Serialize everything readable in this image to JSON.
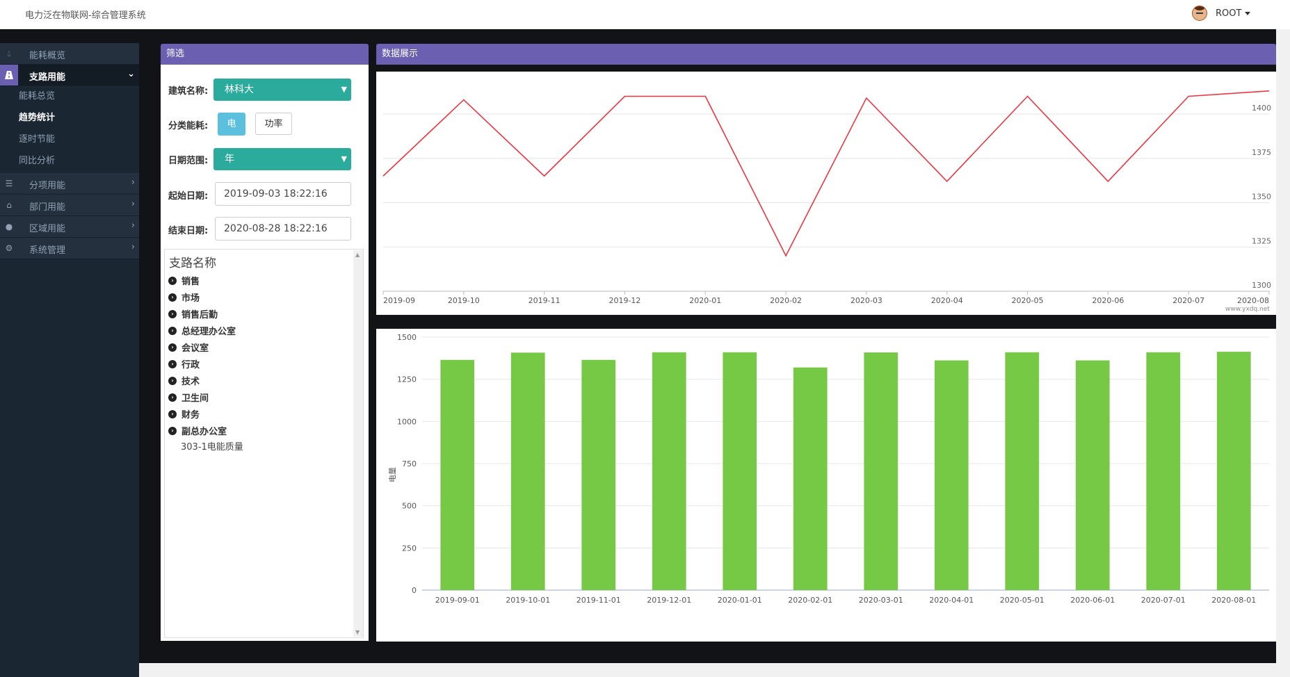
{
  "app": {
    "title": "电力泛在物联网-综合管理系统",
    "user": "ROOT"
  },
  "sidebar": {
    "items": [
      {
        "label": "能耗概览",
        "icon": "drop-icon"
      },
      {
        "label": "支路用能",
        "icon": "road-icon",
        "active": true
      },
      {
        "label": "分项用能",
        "icon": "list-icon"
      },
      {
        "label": "部门用能",
        "icon": "home-icon"
      },
      {
        "label": "区域用能",
        "icon": "map-marker-icon"
      },
      {
        "label": "系统管理",
        "icon": "gear-icon"
      }
    ],
    "sub_items": [
      {
        "label": "能耗总览"
      },
      {
        "label": "趋势统计",
        "current": true
      },
      {
        "label": "逐时节能"
      },
      {
        "label": "同比分析"
      }
    ]
  },
  "filter": {
    "header": "筛选",
    "building_label": "建筑名称:",
    "building_value": "林科大",
    "category_label": "分类能耗:",
    "category_options": [
      "电",
      "功率"
    ],
    "range_label": "日期范围:",
    "range_value": "年",
    "start_label": "起始日期:",
    "start_value": "2019-09-03 18:22:16",
    "end_label": "结束日期:",
    "end_value": "2020-08-28 18:22:16",
    "tree_title": "支路名称",
    "tree_nodes": [
      "销售",
      "市场",
      "销售后勤",
      "总经理办公室",
      "会议室",
      "行政",
      "技术",
      "卫生间",
      "财务",
      "副总办公室"
    ],
    "tree_leaf": "303-1电能质量"
  },
  "display": {
    "header": "数据展示",
    "watermark": "www.yxdq.net"
  },
  "colors": {
    "accent": "#6a5fb0",
    "teal": "#2bab9c",
    "info": "#5bc0de",
    "line": "#f0343f",
    "bar": "#76c944"
  },
  "chart_data": [
    {
      "type": "line",
      "x": [
        "2019-09",
        "2019-10",
        "2019-11",
        "2019-12",
        "2020-01",
        "2020-02",
        "2020-03",
        "2020-04",
        "2020-05",
        "2020-06",
        "2020-07",
        "2020-08"
      ],
      "values": [
        1365,
        1408,
        1365,
        1410,
        1410,
        1320,
        1409,
        1362,
        1410,
        1362,
        1410,
        1413
      ],
      "yticks": [
        1300,
        1325,
        1350,
        1375,
        1400
      ],
      "ylim": [
        1300,
        1420
      ],
      "y_axis_side": "right",
      "grid": true
    },
    {
      "type": "bar",
      "categories": [
        "2019-09-01",
        "2019-10-01",
        "2019-11-01",
        "2019-12-01",
        "2020-01-01",
        "2020-02-01",
        "2020-03-01",
        "2020-04-01",
        "2020-05-01",
        "2020-06-01",
        "2020-07-01",
        "2020-08-01"
      ],
      "values": [
        1365,
        1408,
        1365,
        1410,
        1410,
        1320,
        1409,
        1362,
        1410,
        1362,
        1410,
        1413
      ],
      "yticks": [
        0,
        250,
        500,
        750,
        1000,
        1250,
        1500
      ],
      "ylim": [
        0,
        1500
      ],
      "ylabel": "电量",
      "grid": true
    }
  ]
}
